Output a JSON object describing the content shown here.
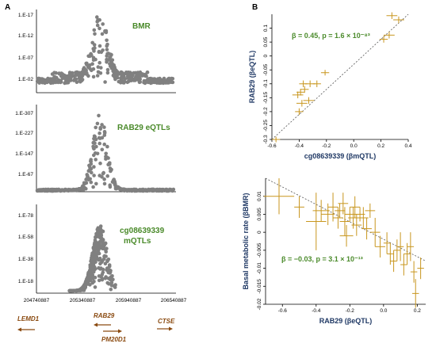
{
  "panel_labels": {
    "a": "A",
    "b": "B"
  },
  "manhattan": {
    "x_ticks": [
      "204740887",
      "205340887",
      "205940887",
      "206540887"
    ],
    "panels": [
      {
        "title": "BMR",
        "title2": "",
        "y_ticks": [
          "1.E-17",
          "1.E-12",
          "1.E-07",
          "1.E-02"
        ]
      },
      {
        "title": "RAB29 eQTLs",
        "title2": "",
        "y_ticks": [
          "1.E-307",
          "1.E-227",
          "1.E-147",
          "1.E-67"
        ]
      },
      {
        "title": "cg08639339",
        "title2": "mQTLs",
        "y_ticks": [
          "1.E-78",
          "1.E-58",
          "1.E-38",
          "1.E-18"
        ]
      }
    ],
    "genes": [
      {
        "name": "LEMD1",
        "direction": "left"
      },
      {
        "name": "RAB29",
        "direction": "left"
      },
      {
        "name": "PM20D1",
        "direction": "right"
      },
      {
        "name": "CTSE",
        "direction": "right"
      }
    ],
    "point_color": "#808080",
    "gene_color": "#8a4a10"
  },
  "chart_data": [
    {
      "type": "scatter",
      "title": "β = 0.45, p = 1.6 × 10⁻⁸³",
      "xlabel": "cg08639339 (βmQTL)",
      "ylabel": "RAB29 (βeQTL)",
      "xlim": [
        -0.6,
        0.4
      ],
      "ylim": [
        -0.3,
        0.15
      ],
      "x_ticks": [
        "-0.6",
        "-0.4",
        "-0.2",
        "0.0",
        "0.2",
        "0.4"
      ],
      "y_ticks": [
        "-0.3",
        "-0.25",
        "-0.2",
        "-0.15",
        "-0.1",
        "-0.05",
        "0",
        "0.05",
        "0.1"
      ],
      "color": "#c8961e",
      "points": [
        {
          "x": -0.57,
          "y": -0.3,
          "xerr": 0.03,
          "yerr": 0.01
        },
        {
          "x": -0.4,
          "y": -0.2,
          "xerr": 0.03,
          "yerr": 0.012
        },
        {
          "x": -0.38,
          "y": -0.17,
          "xerr": 0.04,
          "yerr": 0.012
        },
        {
          "x": -0.33,
          "y": -0.16,
          "xerr": 0.04,
          "yerr": 0.012
        },
        {
          "x": -0.41,
          "y": -0.14,
          "xerr": 0.04,
          "yerr": 0.012
        },
        {
          "x": -0.39,
          "y": -0.13,
          "xerr": 0.03,
          "yerr": 0.012
        },
        {
          "x": -0.36,
          "y": -0.12,
          "xerr": 0.03,
          "yerr": 0.012
        },
        {
          "x": -0.37,
          "y": -0.1,
          "xerr": 0.03,
          "yerr": 0.012
        },
        {
          "x": -0.32,
          "y": -0.1,
          "xerr": 0.04,
          "yerr": 0.012
        },
        {
          "x": -0.27,
          "y": -0.1,
          "xerr": 0.03,
          "yerr": 0.012
        },
        {
          "x": -0.21,
          "y": -0.06,
          "xerr": 0.03,
          "yerr": 0.01
        },
        {
          "x": 0.22,
          "y": 0.06,
          "xerr": 0.03,
          "yerr": 0.012
        },
        {
          "x": 0.26,
          "y": 0.075,
          "xerr": 0.04,
          "yerr": 0.012
        },
        {
          "x": 0.28,
          "y": 0.145,
          "xerr": 0.04,
          "yerr": 0.012
        },
        {
          "x": 0.33,
          "y": 0.13,
          "xerr": 0.04,
          "yerr": 0.012
        }
      ],
      "trend": {
        "x": [
          -0.6,
          0.4
        ],
        "y": [
          -0.3,
          0.15
        ]
      }
    },
    {
      "type": "scatter",
      "title": "β = −0.03, p = 3.1 × 10⁻¹³",
      "xlabel": "RAB29 (βeQTL)",
      "ylabel": "Basal metabolic rate (βBMR)",
      "xlim": [
        -0.7,
        0.25
      ],
      "ylim": [
        -0.02,
        0.015
      ],
      "x_ticks": [
        "-0.6",
        "-0.4",
        "-0.2",
        "0.0",
        "0.2"
      ],
      "y_ticks": [
        "-0.02",
        "-0.015",
        "-0.01",
        "-0.005",
        "0",
        "0.005",
        "0.01"
      ],
      "color": "#c8961e",
      "points": [
        {
          "x": -0.62,
          "y": 0.01,
          "xerr": 0.09,
          "yerr": 0.005
        },
        {
          "x": -0.5,
          "y": 0.007,
          "xerr": 0.03,
          "yerr": 0.003
        },
        {
          "x": -0.4,
          "y": 0.003,
          "xerr": 0.06,
          "yerr": 0.008
        },
        {
          "x": -0.37,
          "y": 0.006,
          "xerr": 0.05,
          "yerr": 0.003
        },
        {
          "x": -0.33,
          "y": 0.005,
          "xerr": 0.04,
          "yerr": 0.003
        },
        {
          "x": -0.3,
          "y": 0.007,
          "xerr": 0.03,
          "yerr": 0.004
        },
        {
          "x": -0.27,
          "y": 0.004,
          "xerr": 0.03,
          "yerr": 0.003
        },
        {
          "x": -0.26,
          "y": 0.006,
          "xerr": 0.03,
          "yerr": 0.002
        },
        {
          "x": -0.24,
          "y": 0.008,
          "xerr": 0.03,
          "yerr": 0.003
        },
        {
          "x": -0.23,
          "y": 0.003,
          "xerr": 0.03,
          "yerr": 0.004
        },
        {
          "x": -0.22,
          "y": -0.001,
          "xerr": 0.04,
          "yerr": 0.003
        },
        {
          "x": -0.2,
          "y": 0.005,
          "xerr": 0.03,
          "yerr": 0.002
        },
        {
          "x": -0.18,
          "y": 0.004,
          "xerr": 0.03,
          "yerr": 0.003
        },
        {
          "x": -0.17,
          "y": 0.007,
          "xerr": 0.03,
          "yerr": 0.003
        },
        {
          "x": -0.16,
          "y": 0.002,
          "xerr": 0.03,
          "yerr": 0.003
        },
        {
          "x": -0.14,
          "y": 0.005,
          "xerr": 0.03,
          "yerr": 0.002
        },
        {
          "x": -0.12,
          "y": 0.004,
          "xerr": 0.03,
          "yerr": 0.003
        },
        {
          "x": -0.1,
          "y": 0.001,
          "xerr": 0.03,
          "yerr": 0.003
        },
        {
          "x": -0.08,
          "y": 0.006,
          "xerr": 0.03,
          "yerr": 0.002
        },
        {
          "x": -0.05,
          "y": 0.0,
          "xerr": 0.03,
          "yerr": 0.004
        },
        {
          "x": -0.02,
          "y": -0.004,
          "xerr": 0.03,
          "yerr": 0.003
        },
        {
          "x": 0.02,
          "y": -0.003,
          "xerr": 0.02,
          "yerr": 0.003
        },
        {
          "x": 0.04,
          "y": -0.006,
          "xerr": 0.02,
          "yerr": 0.003
        },
        {
          "x": 0.06,
          "y": -0.008,
          "xerr": 0.02,
          "yerr": 0.003
        },
        {
          "x": 0.08,
          "y": -0.005,
          "xerr": 0.02,
          "yerr": 0.003
        },
        {
          "x": 0.1,
          "y": -0.004,
          "xerr": 0.02,
          "yerr": 0.004
        },
        {
          "x": 0.12,
          "y": -0.009,
          "xerr": 0.02,
          "yerr": 0.003
        },
        {
          "x": 0.14,
          "y": -0.006,
          "xerr": 0.02,
          "yerr": 0.003
        },
        {
          "x": 0.16,
          "y": -0.004,
          "xerr": 0.02,
          "yerr": 0.004
        },
        {
          "x": 0.18,
          "y": -0.011,
          "xerr": 0.02,
          "yerr": 0.003
        },
        {
          "x": 0.19,
          "y": -0.017,
          "xerr": 0.02,
          "yerr": 0.004
        },
        {
          "x": 0.22,
          "y": -0.01,
          "xerr": 0.02,
          "yerr": 0.003
        }
      ],
      "trend": {
        "x": [
          -0.7,
          0.25
        ],
        "y": [
          0.015,
          -0.008
        ]
      }
    }
  ]
}
